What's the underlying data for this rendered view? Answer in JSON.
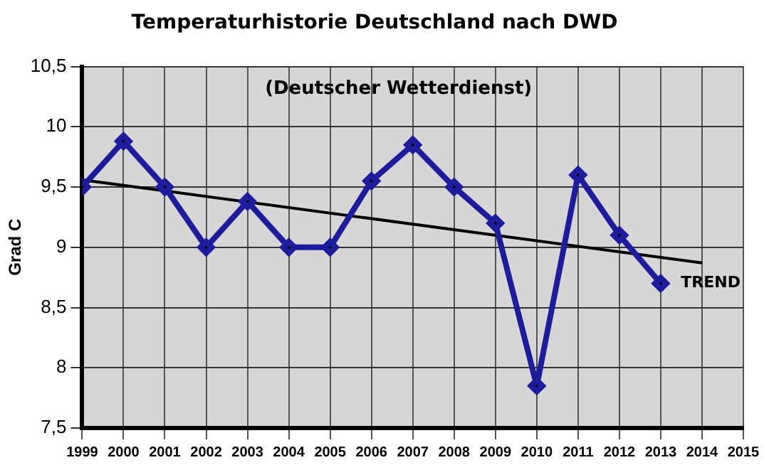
{
  "chart_data": {
    "type": "line",
    "title": "Temperaturhistorie Deutschland nach DWD",
    "ylabel": "Grad C",
    "x": [
      1999,
      2000,
      2001,
      2002,
      2003,
      2004,
      2005,
      2006,
      2007,
      2008,
      2009,
      2010,
      2011,
      2012,
      2013
    ],
    "series": [
      {
        "color": "#1c1c9c",
        "marker": "diamond",
        "values": [
          9.5,
          9.88,
          9.5,
          9.0,
          9.38,
          9.0,
          9.0,
          9.55,
          9.85,
          9.5,
          9.2,
          7.85,
          9.6,
          9.1,
          8.7
        ]
      },
      {
        "type": "line",
        "color": "#000000",
        "marker": "none",
        "x": [
          1999,
          2014
        ],
        "values": [
          9.56,
          8.87
        ]
      }
    ],
    "xlim": [
      1999,
      2015
    ],
    "xticks": [
      1999,
      2000,
      2001,
      2002,
      2003,
      2004,
      2005,
      2006,
      2007,
      2008,
      2009,
      2010,
      2011,
      2012,
      2013,
      2014,
      2015
    ],
    "ylim": [
      7.5,
      10.5
    ],
    "yticks": [
      {
        "value": 7.5,
        "label": "7,5"
      },
      8,
      {
        "value": 8.5,
        "label": "8,5"
      },
      9,
      {
        "value": 9.5,
        "label": "9,5"
      },
      10,
      {
        "value": 10.5,
        "label": "10,5"
      }
    ],
    "grid": true,
    "legend": false,
    "annotations": [
      "(Deutscher Wetterdienst)",
      "TREND"
    ]
  }
}
